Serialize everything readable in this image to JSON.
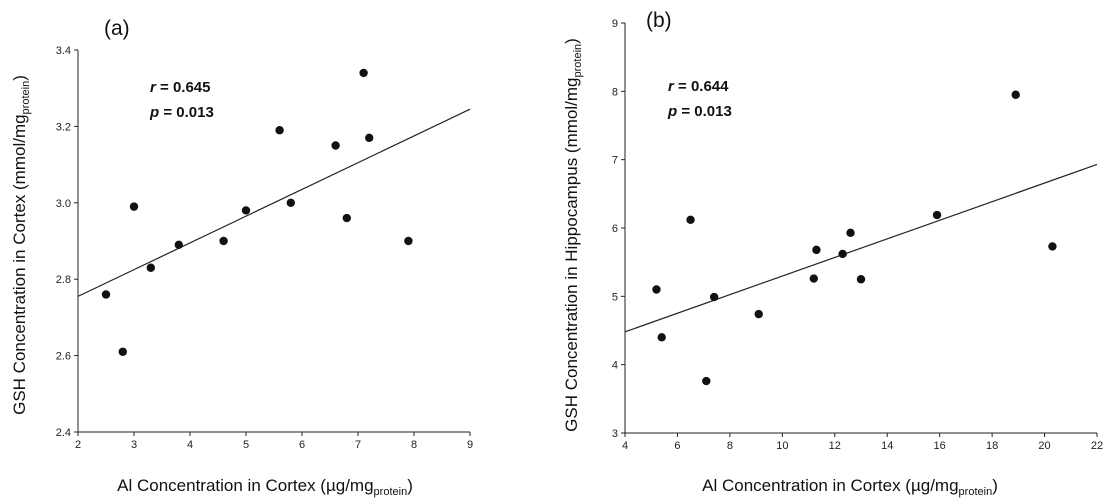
{
  "chart_data": [
    {
      "type": "scatter",
      "panel_label": "(a)",
      "xlabel": {
        "main": "Al Concentration in Cortex (µg/mg",
        "sub": "protein",
        "close": ")"
      },
      "ylabel": {
        "main": "GSH Concentration in Cortex (mmol/mg",
        "sub": "protein",
        "close": ")"
      },
      "xlim": [
        2,
        9
      ],
      "ylim": [
        2.4,
        3.4
      ],
      "xticks": [
        "2",
        "3",
        "4",
        "5",
        "6",
        "7",
        "8",
        "9"
      ],
      "yticks": [
        "2.4",
        "2.6",
        "2.8",
        "3.0",
        "3.2",
        "3.4"
      ],
      "stats": {
        "r_label": "r",
        "r_value": " = 0.645",
        "p_label": "p",
        "p_value": " = 0.013"
      },
      "trendline": {
        "x": [
          2,
          9
        ],
        "y": [
          2.755,
          3.245
        ]
      },
      "points": [
        {
          "x": 2.5,
          "y": 2.76
        },
        {
          "x": 2.8,
          "y": 2.61
        },
        {
          "x": 3.0,
          "y": 2.99
        },
        {
          "x": 3.3,
          "y": 2.83
        },
        {
          "x": 3.8,
          "y": 2.89
        },
        {
          "x": 4.6,
          "y": 2.9
        },
        {
          "x": 5.0,
          "y": 2.98
        },
        {
          "x": 5.6,
          "y": 3.19
        },
        {
          "x": 5.8,
          "y": 3.0
        },
        {
          "x": 6.6,
          "y": 3.15
        },
        {
          "x": 6.8,
          "y": 2.96
        },
        {
          "x": 7.1,
          "y": 3.34
        },
        {
          "x": 7.2,
          "y": 3.17
        },
        {
          "x": 7.9,
          "y": 2.9
        }
      ]
    },
    {
      "type": "scatter",
      "panel_label": "(b)",
      "xlabel": {
        "main": "Al Concentration in Cortex (µg/mg",
        "sub": "protein",
        "close": ")"
      },
      "ylabel": {
        "main": "GSH Concentration in Hippocampus (mmol/mg",
        "sub": "protein",
        "close": ")"
      },
      "xlim": [
        4,
        22
      ],
      "ylim": [
        3,
        9
      ],
      "xticks": [
        "4",
        "6",
        "8",
        "10",
        "12",
        "14",
        "16",
        "18",
        "20",
        "22"
      ],
      "yticks": [
        "3",
        "4",
        "5",
        "6",
        "7",
        "8",
        "9"
      ],
      "stats": {
        "r_label": "r",
        "r_value": " = 0.644",
        "p_label": "p",
        "p_value": " = 0.013"
      },
      "trendline": {
        "x": [
          4,
          22
        ],
        "y": [
          4.48,
          6.93
        ]
      },
      "points": [
        {
          "x": 5.2,
          "y": 5.1
        },
        {
          "x": 5.4,
          "y": 4.4
        },
        {
          "x": 6.5,
          "y": 6.12
        },
        {
          "x": 7.1,
          "y": 3.76
        },
        {
          "x": 7.4,
          "y": 4.99
        },
        {
          "x": 9.1,
          "y": 4.74
        },
        {
          "x": 11.2,
          "y": 5.26
        },
        {
          "x": 11.3,
          "y": 5.68
        },
        {
          "x": 12.3,
          "y": 5.62
        },
        {
          "x": 12.6,
          "y": 5.93
        },
        {
          "x": 13.0,
          "y": 5.25
        },
        {
          "x": 15.9,
          "y": 6.19
        },
        {
          "x": 18.9,
          "y": 7.95
        },
        {
          "x": 20.3,
          "y": 5.73
        }
      ]
    }
  ]
}
